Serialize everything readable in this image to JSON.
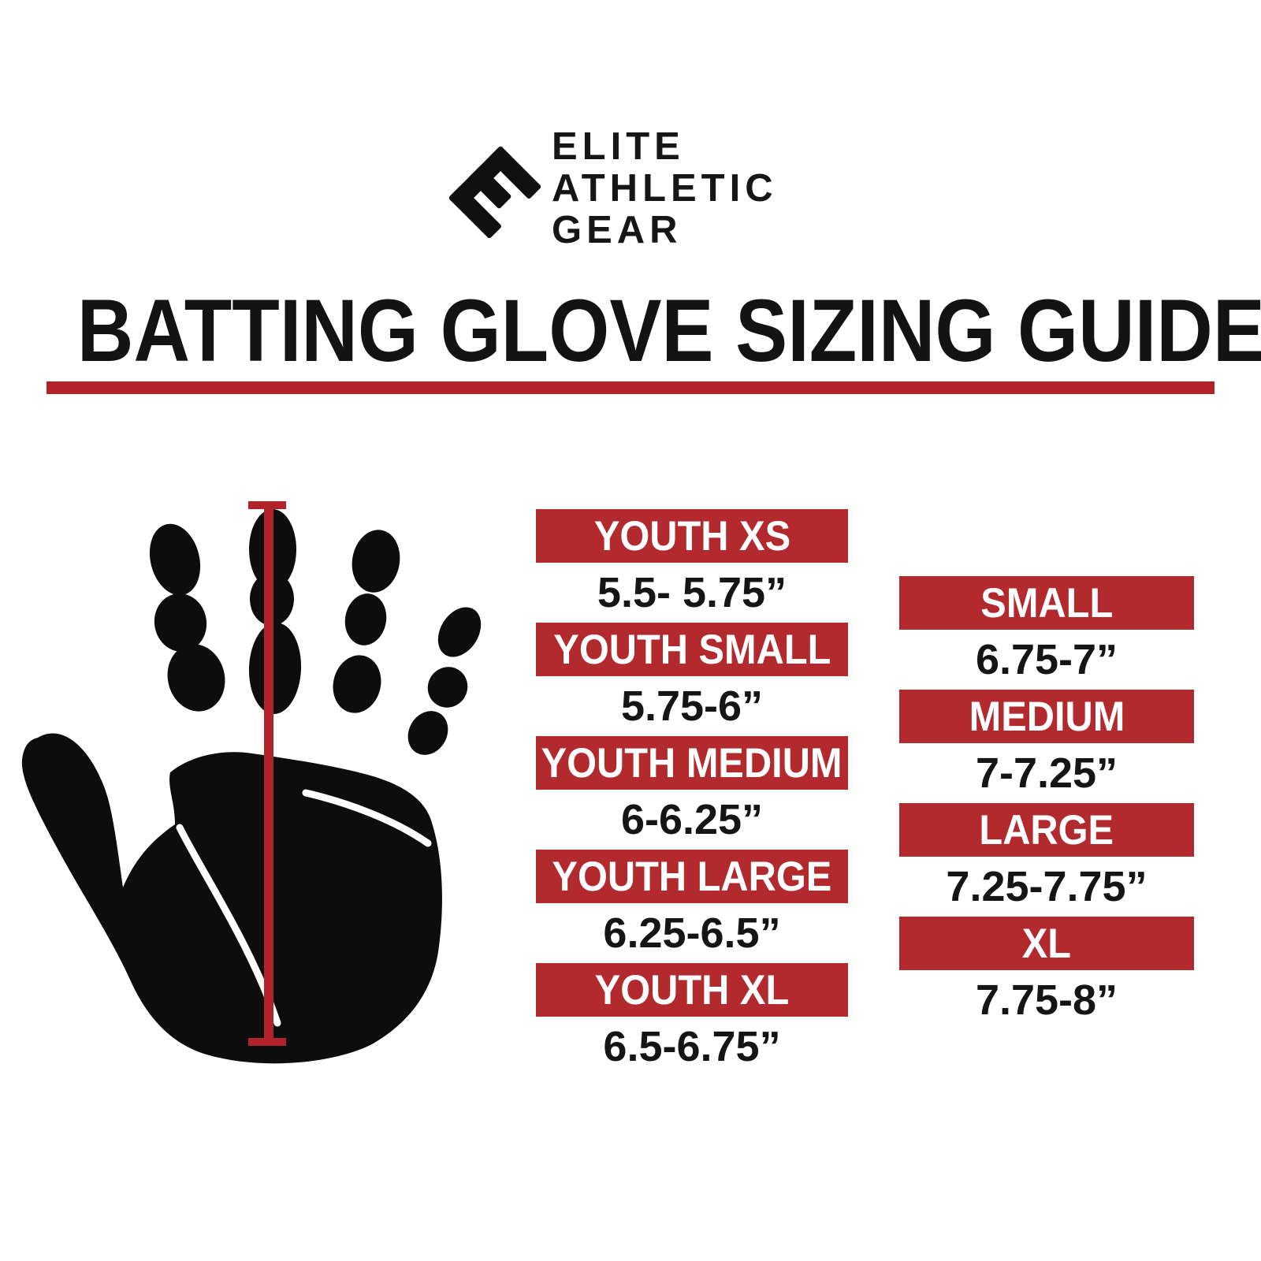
{
  "brand": {
    "name": "Elite Athletic Gear",
    "line1": "ELITE",
    "line2": "ATHLETIC",
    "line3": "GEAR"
  },
  "title": "BATTING GLOVE SIZING GUIDE",
  "colors": {
    "banner_red": "#B2292E",
    "rule_red": "#B1222A",
    "measure_line_red": "#B1222A",
    "ink_black": "#131313",
    "hand_black": "#0E0D0D",
    "background": "#FFFFFF"
  },
  "graphic": {
    "hand_icon": "black-handprint-silhouette",
    "measure_icon": "vertical-measurement-line-with-end-caps"
  },
  "youth_sizes": [
    {
      "label": "YOUTH XS",
      "range": "5.5- 5.75”"
    },
    {
      "label": "YOUTH SMALL",
      "range": "5.75-6”"
    },
    {
      "label": "YOUTH MEDIUM",
      "range": "6-6.25”"
    },
    {
      "label": "YOUTH LARGE",
      "range": "6.25-6.5”"
    },
    {
      "label": "YOUTH XL",
      "range": "6.5-6.75”"
    }
  ],
  "adult_sizes": [
    {
      "label": "SMALL",
      "range": "6.75-7”"
    },
    {
      "label": "MEDIUM",
      "range": "7-7.25”"
    },
    {
      "label": "LARGE",
      "range": "7.25-7.75”"
    },
    {
      "label": "XL",
      "range": "7.75-8”"
    }
  ]
}
